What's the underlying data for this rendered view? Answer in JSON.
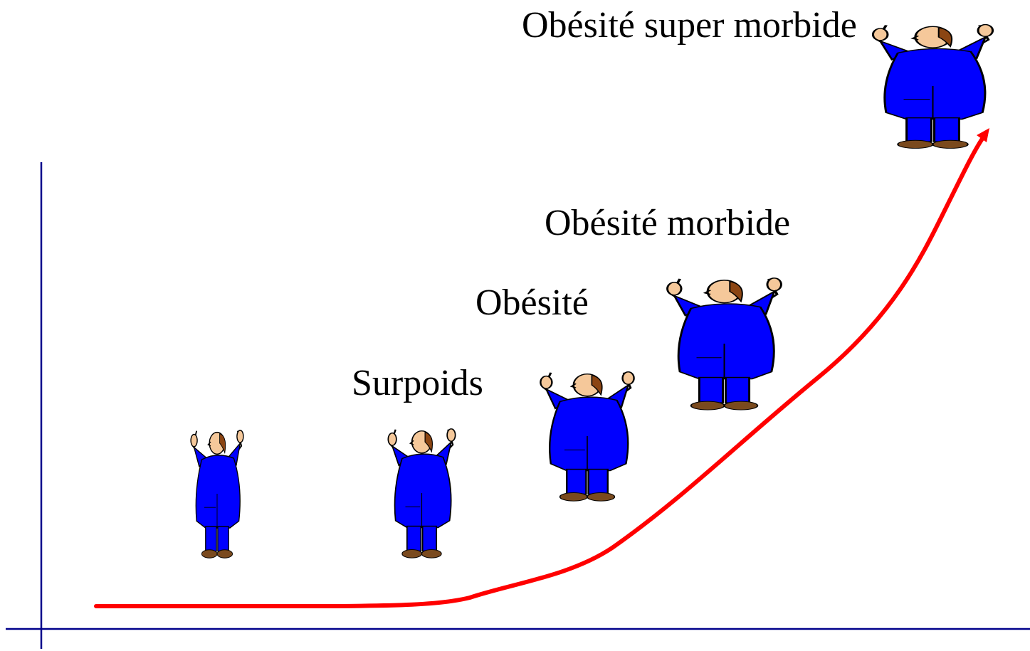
{
  "stages": [
    {
      "label": "Surpoids"
    },
    {
      "label": "Obésité"
    },
    {
      "label": "Obésité morbide"
    },
    {
      "label": "Obésité super morbide"
    }
  ]
}
